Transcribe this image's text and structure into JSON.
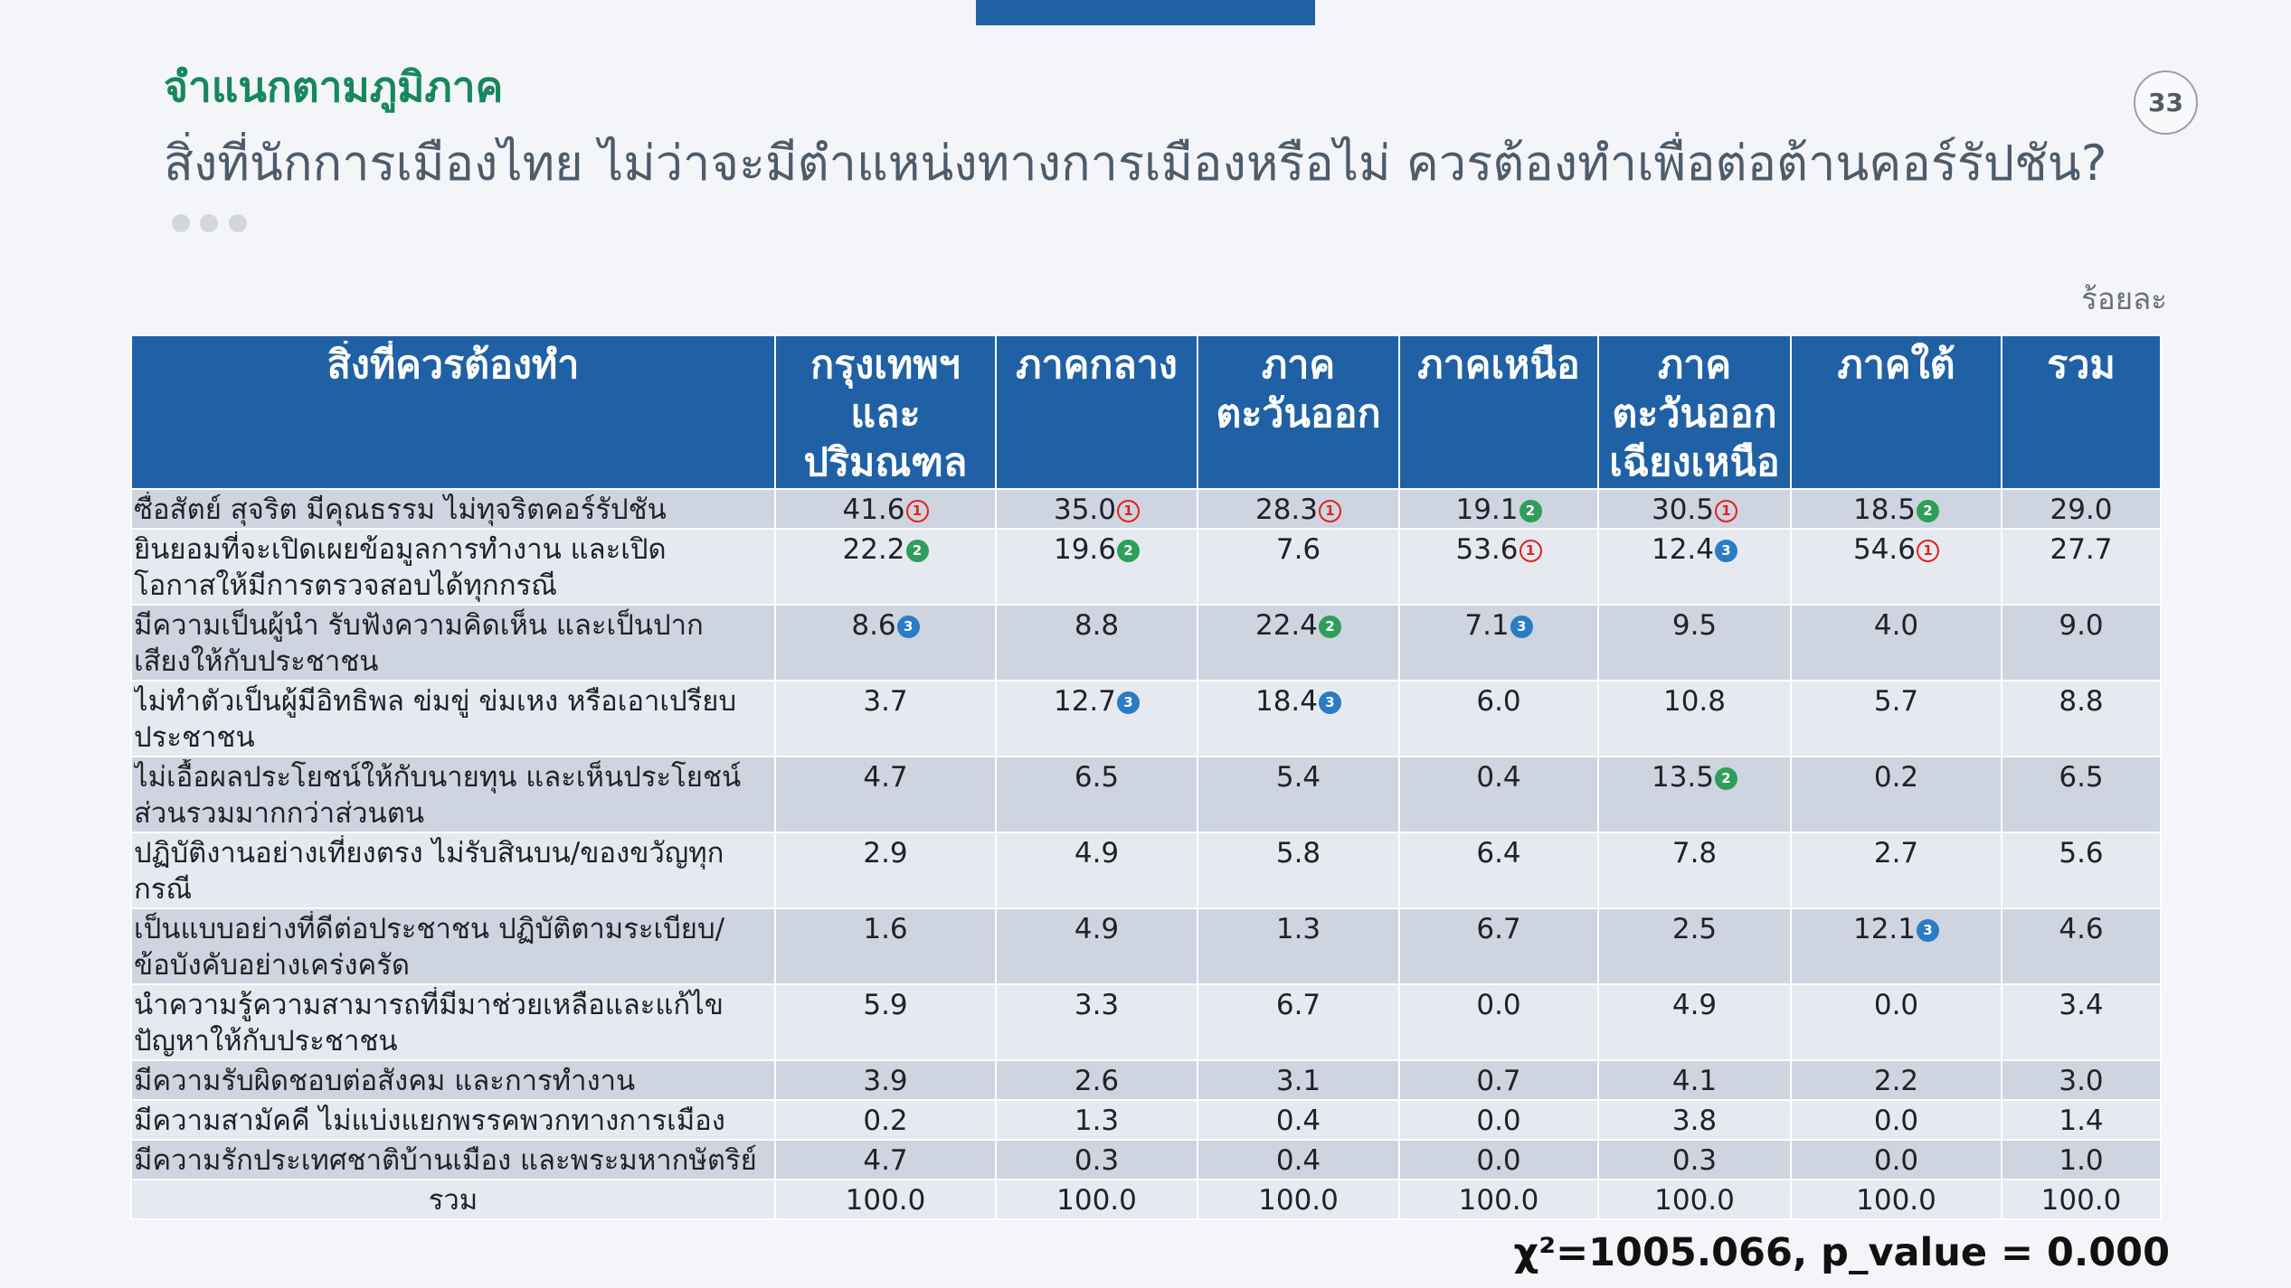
{
  "slide": {
    "subtitle": "จำแนกตามภูมิภาค",
    "title": "สิ่งที่นักการเมืองไทย ไม่ว่าจะมีตำแหน่งทางการเมืองหรือไม่ ควรต้องทำเพื่อต่อต้านคอร์รัปชัน?",
    "page_number": "33",
    "unit_label": "ร้อยละ",
    "stats_note": "χ²=1005.066, p_value = 0.000"
  },
  "colors": {
    "background": "#f3f5f9",
    "accent": "#1f61a4",
    "subtitle_green": "#17875c",
    "title_gray": "#4d5b6b",
    "row_dark": "#cfd4e1",
    "row_light": "#e7e9f0",
    "rank_1": "#e3211c",
    "rank_2": "#2f9e5b",
    "rank_3": "#2a7cc4"
  },
  "table": {
    "headers": [
      {
        "lines": [
          "สิ่งที่ควรต้องทำ"
        ]
      },
      {
        "lines": [
          "กรุงเทพฯ",
          "และ",
          "ปริมณฑล"
        ]
      },
      {
        "lines": [
          "ภาคกลาง"
        ]
      },
      {
        "lines": [
          "ภาค",
          "ตะวันออก"
        ]
      },
      {
        "lines": [
          "ภาคเหนือ"
        ]
      },
      {
        "lines": [
          "ภาค",
          "ตะวันออก",
          "เฉียงเหนือ"
        ]
      },
      {
        "lines": [
          "ภาคใต้"
        ]
      },
      {
        "lines": [
          "รวม"
        ]
      }
    ],
    "rows": [
      {
        "label_lines": [
          "ซื่อสัตย์ สุจริต มีคุณธรรม ไม่ทุจริตคอร์รัปชัน"
        ],
        "cells": [
          {
            "value": "41.6",
            "rank": "1"
          },
          {
            "value": "35.0",
            "rank": "1"
          },
          {
            "value": "28.3",
            "rank": "1"
          },
          {
            "value": "19.1",
            "rank": "2"
          },
          {
            "value": "30.5",
            "rank": "1"
          },
          {
            "value": "18.5",
            "rank": "2"
          },
          {
            "value": "29.0"
          }
        ]
      },
      {
        "label_lines": [
          "ยินยอมที่จะเปิดเผยข้อมูลการทำงาน และเปิด",
          "โอกาสให้มีการตรวจสอบได้ทุกกรณี"
        ],
        "cells": [
          {
            "value": "22.2",
            "rank": "2"
          },
          {
            "value": "19.6",
            "rank": "2"
          },
          {
            "value": "7.6"
          },
          {
            "value": "53.6",
            "rank": "1"
          },
          {
            "value": "12.4",
            "rank": "3"
          },
          {
            "value": "54.6",
            "rank": "1"
          },
          {
            "value": "27.7"
          }
        ]
      },
      {
        "label_lines": [
          "มีความเป็นผู้นำ รับฟังความคิดเห็น และเป็นปาก",
          "เสียงให้กับประชาชน"
        ],
        "cells": [
          {
            "value": "8.6",
            "rank": "3"
          },
          {
            "value": "8.8"
          },
          {
            "value": "22.4",
            "rank": "2"
          },
          {
            "value": "7.1",
            "rank": "3"
          },
          {
            "value": "9.5"
          },
          {
            "value": "4.0"
          },
          {
            "value": "9.0"
          }
        ]
      },
      {
        "label_lines": [
          "ไม่ทำตัวเป็นผู้มีอิทธิพล ข่มขู่ ข่มเหง หรือเอาเปรียบ",
          "ประชาชน"
        ],
        "cells": [
          {
            "value": "3.7"
          },
          {
            "value": "12.7",
            "rank": "3"
          },
          {
            "value": "18.4",
            "rank": "3"
          },
          {
            "value": "6.0"
          },
          {
            "value": "10.8"
          },
          {
            "value": "5.7"
          },
          {
            "value": "8.8"
          }
        ]
      },
      {
        "label_lines": [
          "ไม่เอื้อผลประโยชน์ให้กับนายทุน และเห็นประโยชน์",
          "ส่วนรวมมากกว่าส่วนตน"
        ],
        "cells": [
          {
            "value": "4.7"
          },
          {
            "value": "6.5"
          },
          {
            "value": "5.4"
          },
          {
            "value": "0.4"
          },
          {
            "value": "13.5",
            "rank": "2"
          },
          {
            "value": "0.2"
          },
          {
            "value": "6.5"
          }
        ]
      },
      {
        "label_lines": [
          "ปฏิบัติงานอย่างเที่ยงตรง ไม่รับสินบน/ของขวัญทุก",
          "กรณี"
        ],
        "cells": [
          {
            "value": "2.9"
          },
          {
            "value": "4.9"
          },
          {
            "value": "5.8"
          },
          {
            "value": "6.4"
          },
          {
            "value": "7.8"
          },
          {
            "value": "2.7"
          },
          {
            "value": "5.6"
          }
        ]
      },
      {
        "label_lines": [
          "เป็นแบบอย่างที่ดีต่อประชาชน ปฏิบัติตามระเบียบ/",
          "ข้อบังคับอย่างเคร่งครัด"
        ],
        "cells": [
          {
            "value": "1.6"
          },
          {
            "value": "4.9"
          },
          {
            "value": "1.3"
          },
          {
            "value": "6.7"
          },
          {
            "value": "2.5"
          },
          {
            "value": "12.1",
            "rank": "3"
          },
          {
            "value": "4.6"
          }
        ]
      },
      {
        "label_lines": [
          "นำความรู้ความสามารถที่มีมาช่วยเหลือและแก้ไข",
          "ปัญหาให้กับประชาชน"
        ],
        "cells": [
          {
            "value": "5.9"
          },
          {
            "value": "3.3"
          },
          {
            "value": "6.7"
          },
          {
            "value": "0.0"
          },
          {
            "value": "4.9"
          },
          {
            "value": "0.0"
          },
          {
            "value": "3.4"
          }
        ]
      },
      {
        "label_lines": [
          "มีความรับผิดชอบต่อสังคม และการทำงาน"
        ],
        "cells": [
          {
            "value": "3.9"
          },
          {
            "value": "2.6"
          },
          {
            "value": "3.1"
          },
          {
            "value": "0.7"
          },
          {
            "value": "4.1"
          },
          {
            "value": "2.2"
          },
          {
            "value": "3.0"
          }
        ]
      },
      {
        "label_lines": [
          "มีความสามัคคี ไม่แบ่งแยกพรรคพวกทางการเมือง"
        ],
        "cells": [
          {
            "value": "0.2"
          },
          {
            "value": "1.3"
          },
          {
            "value": "0.4"
          },
          {
            "value": "0.0"
          },
          {
            "value": "3.8"
          },
          {
            "value": "0.0"
          },
          {
            "value": "1.4"
          }
        ]
      },
      {
        "label_lines": [
          "มีความรักประเทศชาติบ้านเมือง และพระมหากษัตริย์"
        ],
        "cells": [
          {
            "value": "4.7"
          },
          {
            "value": "0.3"
          },
          {
            "value": "0.4"
          },
          {
            "value": "0.0"
          },
          {
            "value": "0.3"
          },
          {
            "value": "0.0"
          },
          {
            "value": "1.0"
          }
        ]
      }
    ],
    "total_row": {
      "label": "รวม",
      "values": [
        "100.0",
        "100.0",
        "100.0",
        "100.0",
        "100.0",
        "100.0",
        "100.0"
      ]
    }
  }
}
